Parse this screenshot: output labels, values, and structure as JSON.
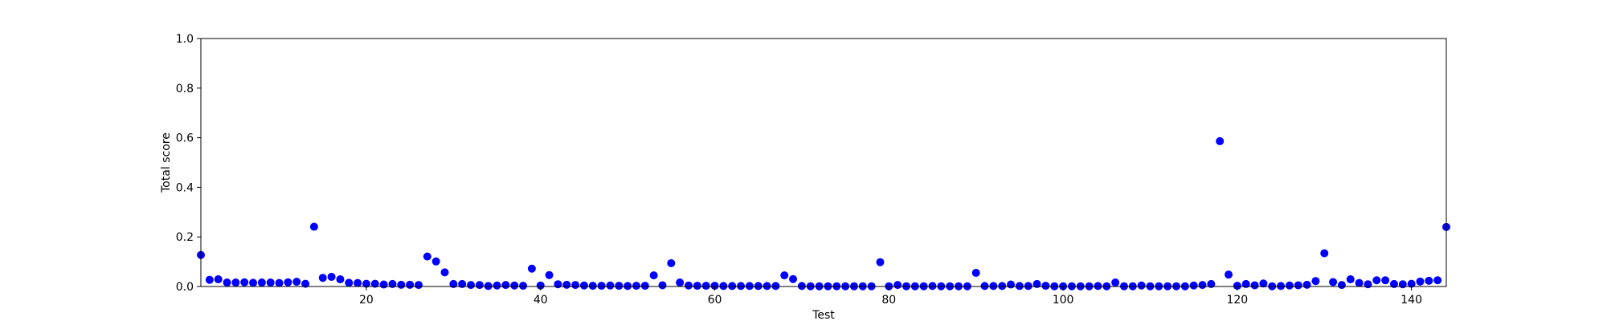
{
  "chart_data": {
    "type": "scatter",
    "xlabel": "Test",
    "ylabel": "Total score",
    "xlim": [
      1,
      144
    ],
    "ylim": [
      0.0,
      1.0
    ],
    "grid": false,
    "marker_color": "#0000ff",
    "xticks": [
      20,
      40,
      60,
      80,
      100,
      120,
      140
    ],
    "xtick_labels": [
      "20",
      "40",
      "60",
      "80",
      "100",
      "120",
      "140"
    ],
    "yticks": [
      0.0,
      0.2,
      0.4,
      0.6,
      0.8,
      1.0
    ],
    "ytick_labels": [
      "0.0",
      "0.2",
      "0.4",
      "0.6",
      "0.8",
      "1.0"
    ],
    "x": [
      1,
      2,
      3,
      4,
      5,
      6,
      7,
      8,
      9,
      10,
      11,
      12,
      13,
      14,
      15,
      16,
      17,
      18,
      19,
      20,
      21,
      22,
      23,
      24,
      25,
      26,
      27,
      28,
      29,
      30,
      31,
      32,
      33,
      34,
      35,
      36,
      37,
      38,
      39,
      40,
      41,
      42,
      43,
      44,
      45,
      46,
      47,
      48,
      49,
      50,
      51,
      52,
      53,
      54,
      55,
      56,
      57,
      58,
      59,
      60,
      61,
      62,
      63,
      64,
      65,
      66,
      67,
      68,
      69,
      70,
      71,
      72,
      73,
      74,
      75,
      76,
      77,
      78,
      79,
      80,
      81,
      82,
      83,
      84,
      85,
      86,
      87,
      88,
      89,
      90,
      91,
      92,
      93,
      94,
      95,
      96,
      97,
      98,
      99,
      100,
      101,
      102,
      103,
      104,
      105,
      106,
      107,
      108,
      109,
      110,
      111,
      112,
      113,
      114,
      115,
      116,
      117,
      118,
      119,
      120,
      121,
      122,
      123,
      124,
      125,
      126,
      127,
      128,
      129,
      130,
      131,
      132,
      133,
      134,
      135,
      136,
      137,
      138,
      139,
      140,
      141,
      142,
      143,
      144
    ],
    "y": [
      0.127,
      0.027,
      0.029,
      0.016,
      0.016,
      0.017,
      0.015,
      0.016,
      0.016,
      0.014,
      0.017,
      0.019,
      0.011,
      0.241,
      0.035,
      0.039,
      0.029,
      0.015,
      0.014,
      0.011,
      0.011,
      0.008,
      0.01,
      0.007,
      0.007,
      0.006,
      0.121,
      0.101,
      0.057,
      0.01,
      0.01,
      0.006,
      0.006,
      0.002,
      0.004,
      0.006,
      0.004,
      0.003,
      0.072,
      0.004,
      0.046,
      0.009,
      0.007,
      0.006,
      0.004,
      0.003,
      0.003,
      0.004,
      0.003,
      0.002,
      0.003,
      0.003,
      0.045,
      0.005,
      0.094,
      0.016,
      0.004,
      0.003,
      0.003,
      0.003,
      0.002,
      0.002,
      0.002,
      0.002,
      0.002,
      0.002,
      0.002,
      0.045,
      0.03,
      0.002,
      0.001,
      0.001,
      0.001,
      0.001,
      0.001,
      0.001,
      0.001,
      0.001,
      0.098,
      0.001,
      0.006,
      0.001,
      0.001,
      0.001,
      0.002,
      0.001,
      0.001,
      0.001,
      0.001,
      0.055,
      0.002,
      0.002,
      0.002,
      0.008,
      0.002,
      0.002,
      0.01,
      0.003,
      0.001,
      0.001,
      0.001,
      0.001,
      0.001,
      0.002,
      0.001,
      0.016,
      0.001,
      0.001,
      0.004,
      0.001,
      0.001,
      0.001,
      0.001,
      0.001,
      0.004,
      0.006,
      0.01,
      0.586,
      0.048,
      0.003,
      0.01,
      0.005,
      0.012,
      0.001,
      0.002,
      0.004,
      0.005,
      0.007,
      0.022,
      0.134,
      0.018,
      0.006,
      0.029,
      0.014,
      0.009,
      0.025,
      0.025,
      0.01,
      0.009,
      0.011,
      0.02,
      0.023,
      0.025,
      0.24
    ]
  }
}
